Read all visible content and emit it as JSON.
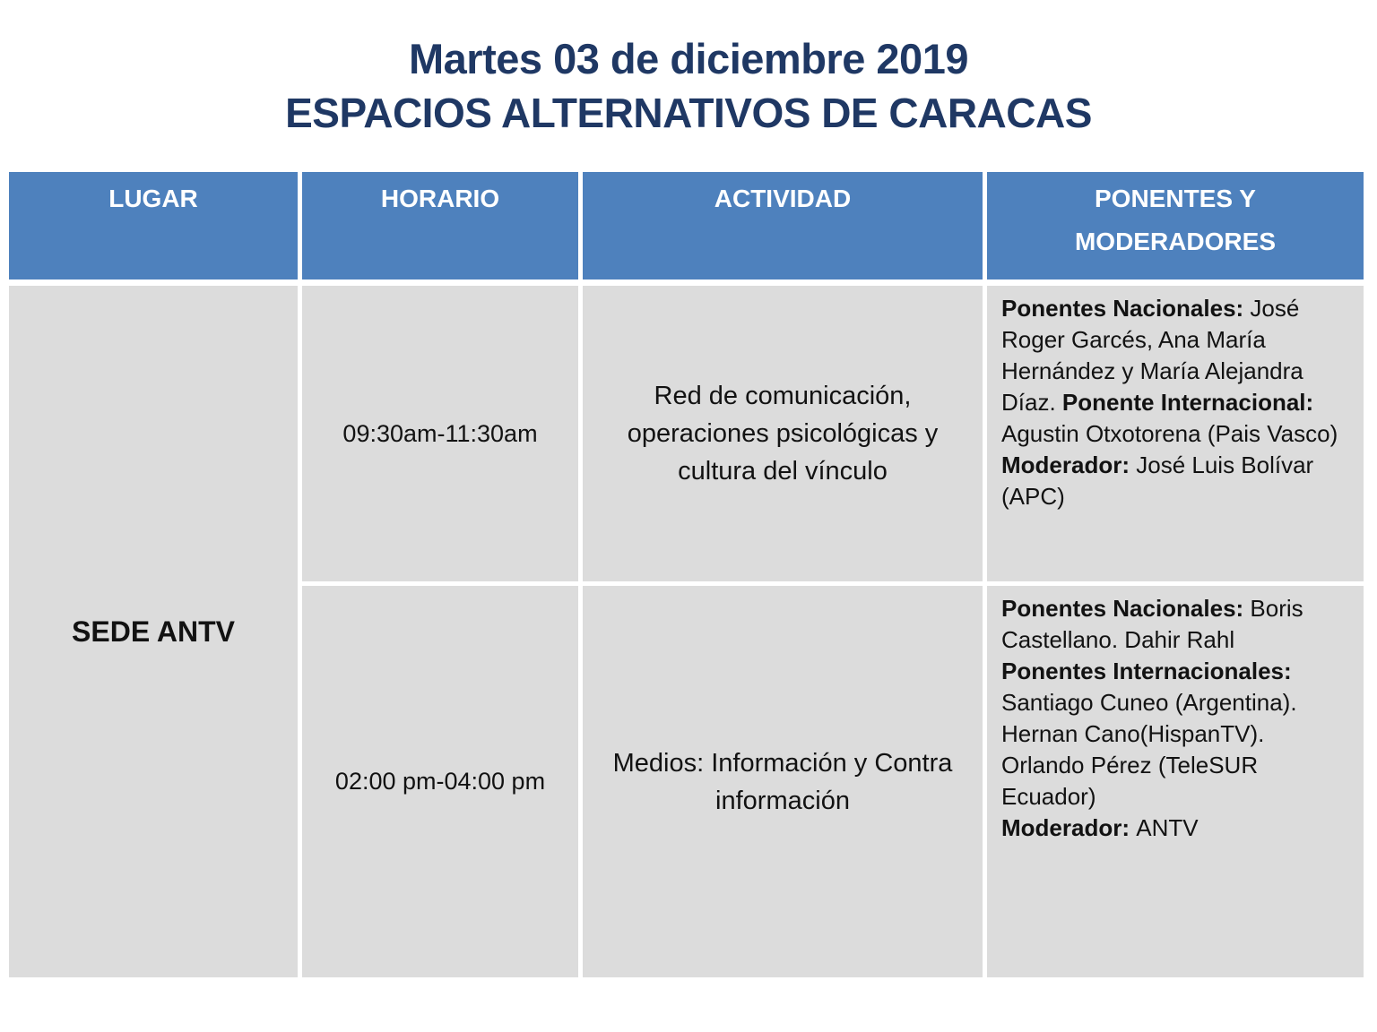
{
  "page": {
    "title_line1": "Martes 03 de diciembre 2019",
    "title_line2": "ESPACIOS ALTERNATIVOS DE CARACAS"
  },
  "colors": {
    "header_bg": "#4E81BD",
    "header_text": "#FFFFFF",
    "cell_bg": "#DCDCDC",
    "title_text": "#1F3864",
    "body_text": "#121212",
    "page_bg": "#FFFFFF"
  },
  "table": {
    "headers": [
      "LUGAR",
      "HORARIO",
      "ACTIVIDAD",
      "PONENTES Y MODERADORES"
    ],
    "location": "SEDE ANTV",
    "rows": [
      {
        "horario": "09:30am-11:30am",
        "actividad": "Red de comunicación, operaciones psicológicas y cultura del vínculo",
        "ponentes": [
          {
            "b": true,
            "t": "Ponentes Nacionales: "
          },
          {
            "b": false,
            "t": "José Roger Garcés, Ana María Hernández y María Alejandra Díaz. "
          },
          {
            "b": true,
            "t": "Ponente Internacional: "
          },
          {
            "b": false,
            "t": "Agustin Otxotorena (Pais Vasco) "
          },
          {
            "b": true,
            "t": "Moderador: "
          },
          {
            "b": false,
            "t": "José Luis Bolívar (APC)"
          }
        ]
      },
      {
        "horario": "02:00 pm-04:00 pm",
        "actividad": "Medios: Información y Contra información",
        "ponentes": [
          {
            "b": true,
            "t": "Ponentes Nacionales: "
          },
          {
            "b": false,
            "t": "Boris Castellano. Dahir Rahl"
          },
          {
            "b": true,
            "br": true,
            "t": "Ponentes Internacionales: "
          },
          {
            "b": false,
            "t": "Santiago Cuneo (Argentina). Hernan Cano(HispanTV). Orlando Pérez (TeleSUR Ecuador)"
          },
          {
            "b": true,
            "br": true,
            "t": "Moderador: "
          },
          {
            "b": false,
            "t": "ANTV"
          }
        ]
      }
    ]
  }
}
